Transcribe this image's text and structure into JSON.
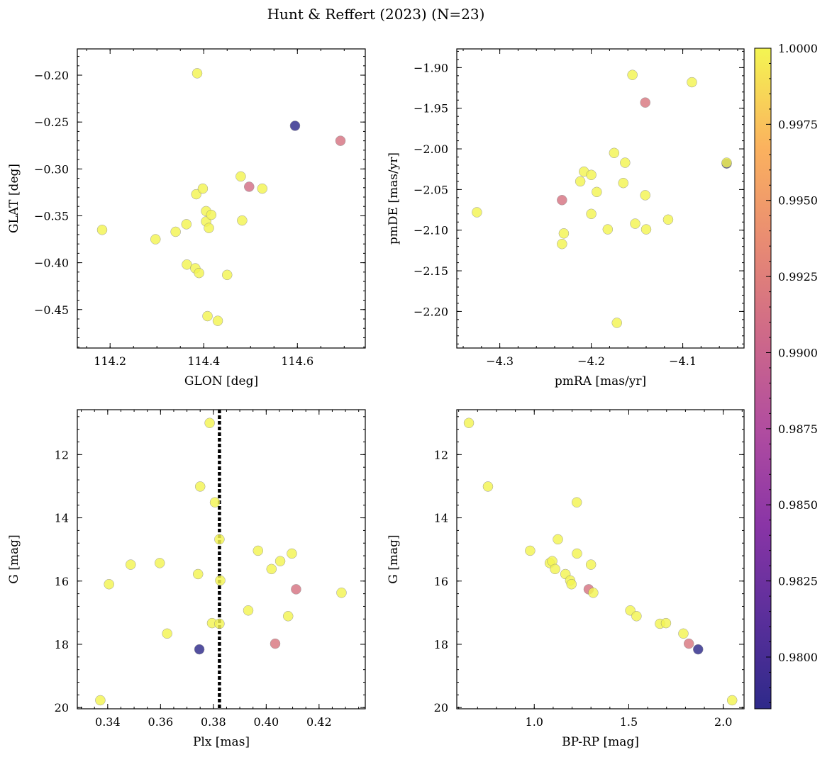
{
  "chart_data": {
    "title": "Hunt & Reffert (2023) (N=23)",
    "colorbar": {
      "ticks": [
        "1.0000",
        "0.9975",
        "0.9950",
        "0.9925",
        "0.9900",
        "0.9875",
        "0.9850",
        "0.9825",
        "0.9800"
      ],
      "range": [
        0.9783,
        1.0
      ],
      "colormap": "plasma"
    },
    "panels": [
      {
        "type": "scatter",
        "xlabel": "GLON [deg]",
        "ylabel": "GLAT [deg]",
        "xlim": [
          114.13,
          114.745
        ],
        "ylim": [
          -0.491,
          -0.172
        ],
        "xticks": [
          114.2,
          114.4,
          114.6
        ],
        "xticklabels": [
          "114.2",
          "114.4",
          "114.6"
        ],
        "yticks": [
          -0.2,
          -0.25,
          -0.3,
          -0.35,
          -0.4,
          -0.45
        ],
        "yticklabels": [
          "−0.20",
          "−0.25",
          "−0.30",
          "−0.35",
          "−0.40",
          "−0.45"
        ],
        "xminor": 0.05,
        "yminor": 0.01,
        "yinvert": false,
        "points": [
          {
            "x": 114.183,
            "y": -0.365,
            "c": 1.0
          },
          {
            "x": 114.297,
            "y": -0.375,
            "c": 1.0
          },
          {
            "x": 114.34,
            "y": -0.367,
            "c": 1.0
          },
          {
            "x": 114.363,
            "y": -0.359,
            "c": 1.0
          },
          {
            "x": 114.364,
            "y": -0.402,
            "c": 1.0
          },
          {
            "x": 114.382,
            "y": -0.406,
            "c": 1.0
          },
          {
            "x": 114.384,
            "y": -0.327,
            "c": 1.0
          },
          {
            "x": 114.386,
            "y": -0.198,
            "c": 1.0
          },
          {
            "x": 114.39,
            "y": -0.411,
            "c": 1.0
          },
          {
            "x": 114.398,
            "y": -0.321,
            "c": 1.0
          },
          {
            "x": 114.405,
            "y": -0.345,
            "c": 1.0
          },
          {
            "x": 114.405,
            "y": -0.356,
            "c": 1.0
          },
          {
            "x": 114.408,
            "y": -0.457,
            "c": 1.0
          },
          {
            "x": 114.411,
            "y": -0.363,
            "c": 1.0
          },
          {
            "x": 114.416,
            "y": -0.349,
            "c": 1.0
          },
          {
            "x": 114.43,
            "y": -0.462,
            "c": 1.0
          },
          {
            "x": 114.45,
            "y": -0.413,
            "c": 1.0
          },
          {
            "x": 114.479,
            "y": -0.308,
            "c": 1.0
          },
          {
            "x": 114.482,
            "y": -0.355,
            "c": 1.0
          },
          {
            "x": 114.497,
            "y": -0.319,
            "c": 0.991
          },
          {
            "x": 114.525,
            "y": -0.321,
            "c": 1.0
          },
          {
            "x": 114.595,
            "y": -0.254,
            "c": 0.9783
          },
          {
            "x": 114.692,
            "y": -0.27,
            "c": 0.9915
          }
        ]
      },
      {
        "type": "scatter",
        "xlabel": "pmRA [mas/yr]",
        "ylabel": "pmDE [mas/yr]",
        "xlim": [
          -4.347,
          -4.033
        ],
        "ylim": [
          -2.245,
          -1.877
        ],
        "xticks": [
          -4.3,
          -4.2,
          -4.1
        ],
        "xticklabels": [
          "−4.3",
          "−4.2",
          "−4.1"
        ],
        "yticks": [
          -1.9,
          -1.95,
          -2.0,
          -2.05,
          -2.1,
          -2.15,
          -2.2
        ],
        "yticklabels": [
          "−1.90",
          "−1.95",
          "−2.00",
          "−2.05",
          "−2.10",
          "−2.15",
          "−2.20"
        ],
        "xminor": 0.02,
        "yminor": 0.01,
        "yinvert": false,
        "points": [
          {
            "x": -4.325,
            "y": -2.078,
            "c": 1.0
          },
          {
            "x": -4.232,
            "y": -2.063,
            "c": 0.9915
          },
          {
            "x": -4.23,
            "y": -2.104,
            "c": 1.0
          },
          {
            "x": -4.232,
            "y": -2.117,
            "c": 1.0
          },
          {
            "x": -4.212,
            "y": -2.04,
            "c": 1.0
          },
          {
            "x": -4.208,
            "y": -2.028,
            "c": 1.0
          },
          {
            "x": -4.2,
            "y": -2.032,
            "c": 1.0
          },
          {
            "x": -4.2,
            "y": -2.08,
            "c": 1.0
          },
          {
            "x": -4.194,
            "y": -2.053,
            "c": 1.0
          },
          {
            "x": -4.182,
            "y": -2.099,
            "c": 1.0
          },
          {
            "x": -4.175,
            "y": -2.005,
            "c": 1.0
          },
          {
            "x": -4.172,
            "y": -2.214,
            "c": 1.0
          },
          {
            "x": -4.165,
            "y": -2.042,
            "c": 1.0
          },
          {
            "x": -4.163,
            "y": -2.017,
            "c": 1.0
          },
          {
            "x": -4.155,
            "y": -1.909,
            "c": 1.0
          },
          {
            "x": -4.152,
            "y": -2.092,
            "c": 1.0
          },
          {
            "x": -4.141,
            "y": -2.057,
            "c": 1.0
          },
          {
            "x": -4.14,
            "y": -2.099,
            "c": 1.0
          },
          {
            "x": -4.141,
            "y": -1.943,
            "c": 0.9918
          },
          {
            "x": -4.116,
            "y": -2.087,
            "c": 1.0
          },
          {
            "x": -4.09,
            "y": -1.918,
            "c": 1.0
          },
          {
            "x": -4.052,
            "y": -2.018,
            "c": 0.9783
          },
          {
            "x": -4.052,
            "y": -2.017,
            "c": 1.0
          }
        ]
      },
      {
        "type": "scatter",
        "xlabel": "Plx [mas]",
        "ylabel": "G [mag]",
        "xlim": [
          0.3285,
          0.4375
        ],
        "ylim": [
          20.04,
          10.58
        ],
        "xticks": [
          0.34,
          0.36,
          0.38,
          0.4,
          0.42
        ],
        "xticklabels": [
          "0.34",
          "0.36",
          "0.38",
          "0.40",
          "0.42"
        ],
        "yticks": [
          12,
          14,
          16,
          18,
          20
        ],
        "yticklabels": [
          "12",
          "14",
          "16",
          "18",
          "20"
        ],
        "xminor": 0.005,
        "yminor": 0.4,
        "yinvert": true,
        "vline": {
          "x": 0.3823,
          "label": ""
        },
        "points": [
          {
            "x": 0.3372,
            "y": 19.77,
            "c": 1.0
          },
          {
            "x": 0.3405,
            "y": 16.1,
            "c": 1.0
          },
          {
            "x": 0.3487,
            "y": 15.48,
            "c": 1.0
          },
          {
            "x": 0.3597,
            "y": 15.43,
            "c": 1.0
          },
          {
            "x": 0.3625,
            "y": 17.66,
            "c": 1.0
          },
          {
            "x": 0.3742,
            "y": 15.78,
            "c": 1.0
          },
          {
            "x": 0.375,
            "y": 13.01,
            "c": 1.0
          },
          {
            "x": 0.3747,
            "y": 18.16,
            "c": 0.9783
          },
          {
            "x": 0.3786,
            "y": 11.0,
            "c": 1.0
          },
          {
            "x": 0.3795,
            "y": 17.33,
            "c": 1.0
          },
          {
            "x": 0.3806,
            "y": 13.51,
            "c": 1.0
          },
          {
            "x": 0.3823,
            "y": 14.68,
            "c": 1.0
          },
          {
            "x": 0.3823,
            "y": 17.35,
            "c": 1.0
          },
          {
            "x": 0.3826,
            "y": 15.98,
            "c": 1.0
          },
          {
            "x": 0.3932,
            "y": 16.93,
            "c": 1.0
          },
          {
            "x": 0.3969,
            "y": 15.04,
            "c": 1.0
          },
          {
            "x": 0.402,
            "y": 15.62,
            "c": 1.0
          },
          {
            "x": 0.4034,
            "y": 17.98,
            "c": 0.9918
          },
          {
            "x": 0.4053,
            "y": 15.37,
            "c": 1.0
          },
          {
            "x": 0.4083,
            "y": 17.11,
            "c": 1.0
          },
          {
            "x": 0.4097,
            "y": 15.13,
            "c": 1.0
          },
          {
            "x": 0.4113,
            "y": 16.26,
            "c": 0.9915
          },
          {
            "x": 0.4285,
            "y": 16.37,
            "c": 1.0
          }
        ]
      },
      {
        "type": "scatter",
        "xlabel": "BP-RP [mag]",
        "ylabel": "G [mag]",
        "xlim": [
          0.59,
          2.11
        ],
        "ylim": [
          20.04,
          10.58
        ],
        "xticks": [
          1.0,
          1.5,
          2.0
        ],
        "xticklabels": [
          "1.0",
          "1.5",
          "2.0"
        ],
        "yticks": [
          12,
          14,
          16,
          18,
          20
        ],
        "yticklabels": [
          "12",
          "14",
          "16",
          "18",
          "20"
        ],
        "xminor": 0.1,
        "yminor": 0.4,
        "yinvert": true,
        "points": [
          {
            "x": 0.654,
            "y": 11.0,
            "c": 1.0
          },
          {
            "x": 0.755,
            "y": 13.01,
            "c": 1.0
          },
          {
            "x": 0.978,
            "y": 15.04,
            "c": 1.0
          },
          {
            "x": 1.082,
            "y": 15.43,
            "c": 1.0
          },
          {
            "x": 1.095,
            "y": 15.37,
            "c": 1.0
          },
          {
            "x": 1.11,
            "y": 15.62,
            "c": 1.0
          },
          {
            "x": 1.125,
            "y": 14.68,
            "c": 1.0
          },
          {
            "x": 1.165,
            "y": 15.78,
            "c": 1.0
          },
          {
            "x": 1.19,
            "y": 15.98,
            "c": 1.0
          },
          {
            "x": 1.197,
            "y": 16.1,
            "c": 1.0
          },
          {
            "x": 1.225,
            "y": 13.51,
            "c": 1.0
          },
          {
            "x": 1.226,
            "y": 15.13,
            "c": 1.0
          },
          {
            "x": 1.288,
            "y": 16.26,
            "c": 0.9915
          },
          {
            "x": 1.3,
            "y": 15.48,
            "c": 1.0
          },
          {
            "x": 1.312,
            "y": 16.37,
            "c": 1.0
          },
          {
            "x": 1.508,
            "y": 16.93,
            "c": 1.0
          },
          {
            "x": 1.541,
            "y": 17.11,
            "c": 1.0
          },
          {
            "x": 1.665,
            "y": 17.35,
            "c": 1.0
          },
          {
            "x": 1.697,
            "y": 17.33,
            "c": 1.0
          },
          {
            "x": 1.789,
            "y": 17.66,
            "c": 1.0
          },
          {
            "x": 1.818,
            "y": 17.98,
            "c": 0.9918
          },
          {
            "x": 1.867,
            "y": 18.16,
            "c": 0.9783
          },
          {
            "x": 2.047,
            "y": 19.77,
            "c": 1.0
          }
        ]
      }
    ]
  }
}
